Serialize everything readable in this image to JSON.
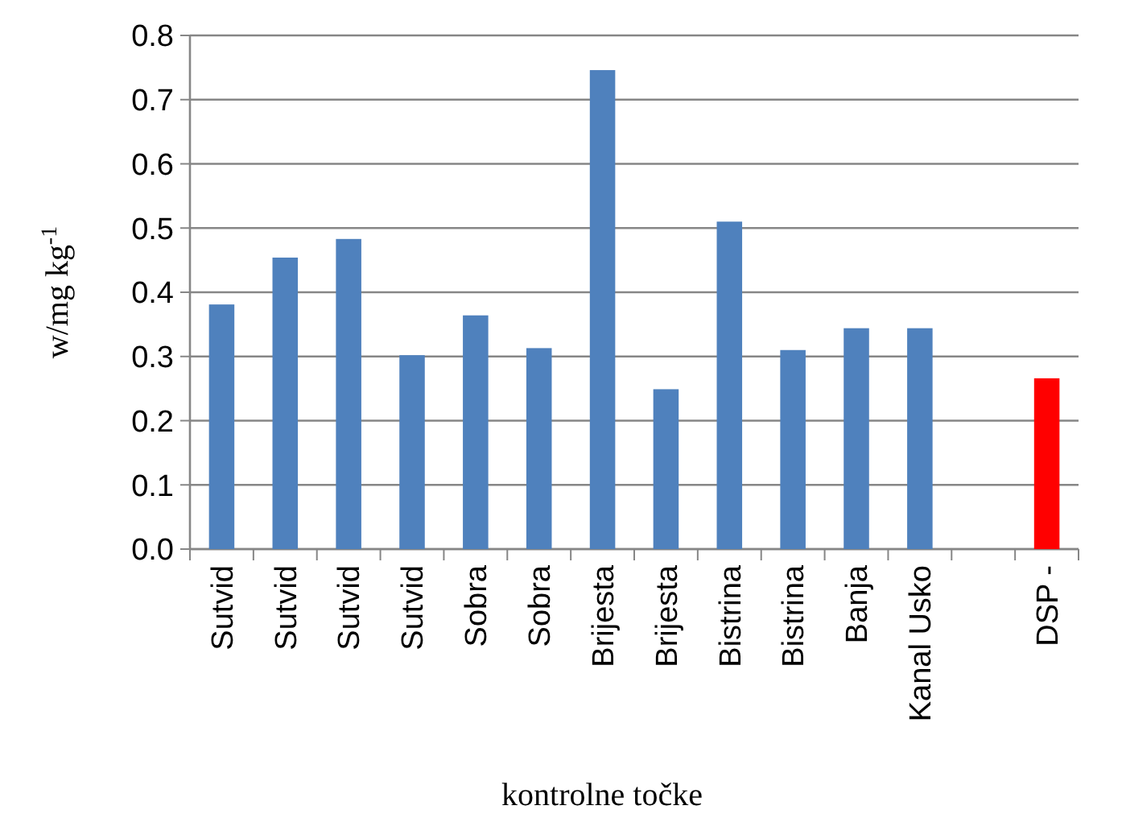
{
  "chart_data": {
    "type": "bar",
    "xlabel": "kontrolne točke",
    "ylabel": "w/mg kg$^{-1}$",
    "categories": [
      "Sutvid",
      "Sutvid",
      "Sutvid",
      "Sutvid",
      "Sobra",
      "Sobra",
      "Brijesta",
      "Brijesta",
      "Bistrina",
      "Bistrina",
      "Banja",
      "Kanal Usko",
      null,
      "DSP -"
    ],
    "values": [
      0.381,
      0.454,
      0.483,
      0.302,
      0.364,
      0.313,
      0.746,
      0.249,
      0.51,
      0.31,
      0.344,
      0.344,
      null,
      0.266
    ],
    "colors": [
      "#4f81bd",
      "#4f81bd",
      "#4f81bd",
      "#4f81bd",
      "#4f81bd",
      "#4f81bd",
      "#4f81bd",
      "#4f81bd",
      "#4f81bd",
      "#4f81bd",
      "#4f81bd",
      "#4f81bd",
      null,
      "#ff0000"
    ],
    "ylim": [
      0,
      0.8
    ],
    "yticks": [
      {
        "value": 0,
        "label": "0.0"
      },
      {
        "value": 0.1,
        "label": "0.1"
      },
      {
        "value": 0.2,
        "label": "0.2"
      },
      {
        "value": 0.3,
        "label": "0.3"
      },
      {
        "value": 0.4,
        "label": "0.4"
      },
      {
        "value": 0.5,
        "label": "0.5"
      },
      {
        "value": 0.6,
        "label": "0.6"
      },
      {
        "value": 0.7,
        "label": "0.7"
      },
      {
        "value": 0.8,
        "label": "0.8"
      }
    ],
    "grid": "y"
  }
}
